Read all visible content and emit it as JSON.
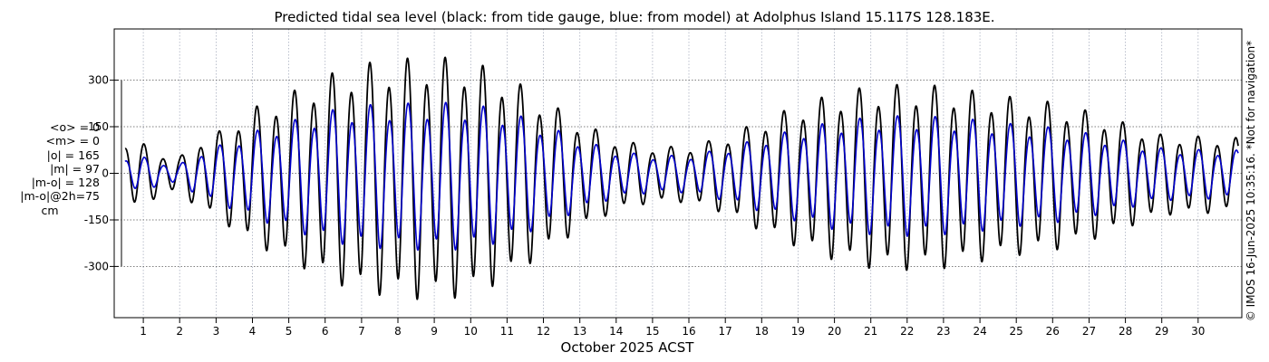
{
  "chart_data": {
    "type": "line",
    "title": "Predicted tidal sea level (black: from tide gauge, blue: from model) at Adolphus Island 15.117S 128.183E.",
    "xlabel": "October 2025 ACST",
    "ylabel": "",
    "x_ticks": [
      "1",
      "2",
      "3",
      "4",
      "5",
      "6",
      "7",
      "8",
      "9",
      "10",
      "11",
      "12",
      "13",
      "14",
      "15",
      "16",
      "17",
      "18",
      "19",
      "20",
      "21",
      "22",
      "23",
      "24",
      "25",
      "26",
      "27",
      "28",
      "29",
      "30"
    ],
    "y_ticks": [
      "300",
      "150",
      "0",
      "-150",
      "-300"
    ],
    "xlim": [
      0.2,
      31.2
    ],
    "ylim": [
      -465,
      465
    ],
    "grid": true,
    "stats": {
      "mean_obs": "<o> = 0",
      "mean_model": "<m> = 0",
      "abs_obs": "|o| = 165",
      "abs_model": "|m| = 97",
      "abs_diff": "|m-o| = 128",
      "abs_diff_2h": "|m-o|@2h=75",
      "unit": "cm"
    },
    "series": [
      {
        "color": "#000000",
        "tidal_amplitude_by_day": [
          [
            0.5,
            110
          ],
          [
            1,
            100
          ],
          [
            1.5,
            65
          ],
          [
            2,
            55
          ],
          [
            2.5,
            110
          ],
          [
            3,
            135
          ],
          [
            4,
            220
          ],
          [
            5,
            270
          ],
          [
            6,
            330
          ],
          [
            7,
            370
          ],
          [
            8,
            385
          ],
          [
            9,
            395
          ],
          [
            10,
            380
          ],
          [
            11,
            330
          ],
          [
            12,
            250
          ],
          [
            13,
            175
          ],
          [
            14,
            115
          ],
          [
            15,
            90
          ],
          [
            16,
            90
          ],
          [
            17,
            125
          ],
          [
            18,
            180
          ],
          [
            19,
            230
          ],
          [
            20,
            270
          ],
          [
            21,
            295
          ],
          [
            22,
            300
          ],
          [
            23,
            295
          ],
          [
            24,
            275
          ],
          [
            25,
            255
          ],
          [
            26,
            240
          ],
          [
            27,
            210
          ],
          [
            28,
            170
          ],
          [
            29,
            130
          ],
          [
            30,
            125
          ],
          [
            31,
            120
          ]
        ]
      },
      {
        "color": "#0000cc",
        "tidal_amplitude_by_day": [
          [
            0.5,
            55
          ],
          [
            1,
            55
          ],
          [
            1.5,
            35
          ],
          [
            2,
            30
          ],
          [
            2.5,
            70
          ],
          [
            3,
            90
          ],
          [
            4,
            140
          ],
          [
            5,
            175
          ],
          [
            6,
            210
          ],
          [
            7,
            230
          ],
          [
            8,
            235
          ],
          [
            9,
            240
          ],
          [
            10,
            235
          ],
          [
            11,
            210
          ],
          [
            12,
            165
          ],
          [
            13,
            115
          ],
          [
            14,
            75
          ],
          [
            15,
            60
          ],
          [
            16,
            60
          ],
          [
            17,
            85
          ],
          [
            18,
            120
          ],
          [
            19,
            150
          ],
          [
            20,
            175
          ],
          [
            21,
            190
          ],
          [
            22,
            195
          ],
          [
            23,
            190
          ],
          [
            24,
            180
          ],
          [
            25,
            165
          ],
          [
            26,
            155
          ],
          [
            27,
            135
          ],
          [
            28,
            110
          ],
          [
            29,
            85
          ],
          [
            30,
            80
          ],
          [
            31,
            78
          ]
        ]
      }
    ]
  },
  "credit": "© IMOS 16-Jun-2025 10:35:16. *Not for navigation*"
}
